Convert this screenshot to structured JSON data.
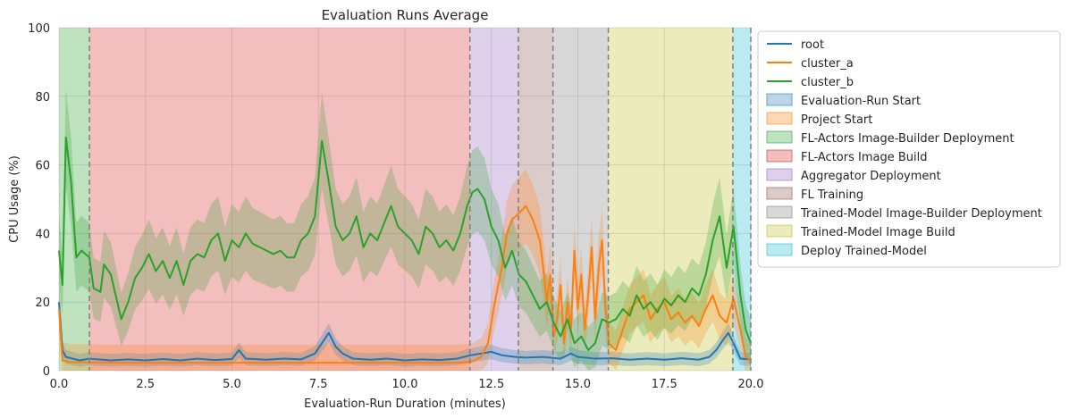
{
  "chart_data": {
    "type": "line",
    "title": "Evaluation Runs Average",
    "xlabel": "Evaluation-Run Duration (minutes)",
    "ylabel": "CPU Usage (%)",
    "xlim": [
      0,
      20
    ],
    "ylim": [
      0,
      100
    ],
    "xticks": [
      "0.0",
      "2.5",
      "5.0",
      "7.5",
      "10.0",
      "12.5",
      "15.0",
      "17.5",
      "20.0"
    ],
    "xtick_values": [
      0,
      2.5,
      5,
      7.5,
      10,
      12.5,
      15,
      17.5,
      20
    ],
    "yticks": [
      "0",
      "20",
      "40",
      "60",
      "80",
      "100"
    ],
    "ytick_values": [
      0,
      20,
      40,
      60,
      80,
      100
    ],
    "grid": true,
    "legend_position": "outside-right-top",
    "phases": [
      {
        "name": "FL-Actors Image-Builder Deployment",
        "start": 0.0,
        "end": 0.88,
        "color": "#2ca02c"
      },
      {
        "name": "FL-Actors Image Build",
        "start": 0.88,
        "end": 11.88,
        "color": "#d62728"
      },
      {
        "name": "Aggregator Deployment",
        "start": 11.88,
        "end": 13.28,
        "color": "#9467bd"
      },
      {
        "name": "FL Training",
        "start": 13.28,
        "end": 14.28,
        "color": "#8c564b"
      },
      {
        "name": "Trained-Model Image-Builder Deployment",
        "start": 14.28,
        "end": 15.88,
        "color": "#7f7f7f"
      },
      {
        "name": "Trained-Model Image Build",
        "start": 15.88,
        "end": 19.48,
        "color": "#bcbd22"
      },
      {
        "name": "Deploy Trained-Model",
        "start": 19.48,
        "end": 20.0,
        "color": "#17becf"
      }
    ],
    "phase_boundaries": [
      0.88,
      11.88,
      13.28,
      14.28,
      15.88,
      19.48,
      20.0
    ],
    "series": [
      {
        "name": "root",
        "color": "#1f77b4",
        "points": [
          [
            0,
            20
          ],
          [
            0.1,
            6
          ],
          [
            0.2,
            4
          ],
          [
            0.4,
            3.5
          ],
          [
            0.6,
            3
          ],
          [
            0.88,
            3.5
          ],
          [
            1.5,
            3
          ],
          [
            2.0,
            3.3
          ],
          [
            2.5,
            3
          ],
          [
            3.0,
            3.4
          ],
          [
            3.5,
            3
          ],
          [
            4.0,
            3.5
          ],
          [
            4.5,
            3.1
          ],
          [
            5.0,
            3.4
          ],
          [
            5.2,
            6
          ],
          [
            5.4,
            3.5
          ],
          [
            6.0,
            3.2
          ],
          [
            6.5,
            3.5
          ],
          [
            7.0,
            3.3
          ],
          [
            7.4,
            5
          ],
          [
            7.6,
            8
          ],
          [
            7.8,
            11
          ],
          [
            8.0,
            7
          ],
          [
            8.2,
            5
          ],
          [
            8.5,
            3.5
          ],
          [
            9.0,
            3.2
          ],
          [
            9.5,
            3.5
          ],
          [
            10.0,
            3
          ],
          [
            10.5,
            3.3
          ],
          [
            11.0,
            3.1
          ],
          [
            11.5,
            3.5
          ],
          [
            11.9,
            4.5
          ],
          [
            12.2,
            5
          ],
          [
            12.5,
            5.5
          ],
          [
            12.8,
            4.5
          ],
          [
            13.2,
            4
          ],
          [
            13.5,
            3.8
          ],
          [
            14.0,
            4
          ],
          [
            14.5,
            3.5
          ],
          [
            14.8,
            5
          ],
          [
            15.0,
            4
          ],
          [
            15.5,
            3.5
          ],
          [
            16.0,
            3.6
          ],
          [
            16.5,
            3.2
          ],
          [
            17.0,
            3.5
          ],
          [
            17.5,
            3.2
          ],
          [
            18.0,
            3.6
          ],
          [
            18.5,
            3.2
          ],
          [
            18.8,
            4
          ],
          [
            19.0,
            6
          ],
          [
            19.2,
            9
          ],
          [
            19.35,
            11
          ],
          [
            19.5,
            8
          ],
          [
            19.7,
            3.5
          ],
          [
            20,
            3.3
          ]
        ],
        "ci": 1.5
      },
      {
        "name": "cluster_a",
        "color": "#ff7f0e",
        "points": [
          [
            0,
            18
          ],
          [
            0.1,
            3
          ],
          [
            0.3,
            2.5
          ],
          [
            0.88,
            2.4
          ],
          [
            2.0,
            2.3
          ],
          [
            4.0,
            2.3
          ],
          [
            6.0,
            2.3
          ],
          [
            8.0,
            2.3
          ],
          [
            10.0,
            2.3
          ],
          [
            11.5,
            2.3
          ],
          [
            11.9,
            2.5
          ],
          [
            12.2,
            4
          ],
          [
            12.4,
            8
          ],
          [
            12.6,
            20
          ],
          [
            12.8,
            30
          ],
          [
            12.95,
            40
          ],
          [
            13.1,
            44
          ],
          [
            13.3,
            46
          ],
          [
            13.5,
            48
          ],
          [
            13.7,
            44
          ],
          [
            13.9,
            38
          ],
          [
            14.0,
            30
          ],
          [
            14.1,
            20
          ],
          [
            14.2,
            28
          ],
          [
            14.3,
            10
          ],
          [
            14.4,
            15
          ],
          [
            14.5,
            25
          ],
          [
            14.6,
            8
          ],
          [
            14.7,
            20
          ],
          [
            14.8,
            12
          ],
          [
            14.9,
            35
          ],
          [
            15.0,
            18
          ],
          [
            15.1,
            28
          ],
          [
            15.2,
            12
          ],
          [
            15.3,
            22
          ],
          [
            15.4,
            36
          ],
          [
            15.5,
            15
          ],
          [
            15.6,
            30
          ],
          [
            15.7,
            38
          ],
          [
            15.8,
            18
          ],
          [
            15.9,
            8
          ],
          [
            16.1,
            6
          ],
          [
            16.3,
            12
          ],
          [
            16.5,
            18
          ],
          [
            16.7,
            20
          ],
          [
            16.9,
            22
          ],
          [
            17.1,
            15
          ],
          [
            17.3,
            18
          ],
          [
            17.5,
            20
          ],
          [
            17.7,
            15
          ],
          [
            17.9,
            17
          ],
          [
            18.1,
            14
          ],
          [
            18.3,
            16
          ],
          [
            18.5,
            13
          ],
          [
            18.7,
            18
          ],
          [
            18.9,
            22
          ],
          [
            19.1,
            16
          ],
          [
            19.3,
            14
          ],
          [
            19.5,
            21
          ],
          [
            19.7,
            12
          ],
          [
            19.85,
            4
          ],
          [
            20,
            3
          ]
        ],
        "ci": 5
      },
      {
        "name": "cluster_b",
        "color": "#2ca02c",
        "points": [
          [
            0,
            35
          ],
          [
            0.1,
            25
          ],
          [
            0.2,
            68
          ],
          [
            0.35,
            55
          ],
          [
            0.5,
            33
          ],
          [
            0.65,
            35
          ],
          [
            0.88,
            33
          ],
          [
            1.0,
            24
          ],
          [
            1.2,
            23
          ],
          [
            1.3,
            31
          ],
          [
            1.5,
            28
          ],
          [
            1.8,
            15
          ],
          [
            2.0,
            20
          ],
          [
            2.2,
            27
          ],
          [
            2.4,
            30
          ],
          [
            2.6,
            34
          ],
          [
            2.8,
            29
          ],
          [
            3.0,
            32
          ],
          [
            3.2,
            27
          ],
          [
            3.4,
            32
          ],
          [
            3.6,
            25
          ],
          [
            3.8,
            32
          ],
          [
            4.0,
            34
          ],
          [
            4.2,
            33
          ],
          [
            4.4,
            38
          ],
          [
            4.6,
            40
          ],
          [
            4.8,
            32
          ],
          [
            5.0,
            38
          ],
          [
            5.2,
            36
          ],
          [
            5.4,
            40
          ],
          [
            5.6,
            37
          ],
          [
            5.8,
            36
          ],
          [
            6.0,
            35
          ],
          [
            6.2,
            34
          ],
          [
            6.4,
            35
          ],
          [
            6.6,
            33
          ],
          [
            6.8,
            33
          ],
          [
            7.0,
            38
          ],
          [
            7.2,
            40
          ],
          [
            7.4,
            45
          ],
          [
            7.6,
            67
          ],
          [
            7.8,
            55
          ],
          [
            8.0,
            42
          ],
          [
            8.2,
            38
          ],
          [
            8.4,
            40
          ],
          [
            8.6,
            45
          ],
          [
            8.8,
            36
          ],
          [
            9.0,
            40
          ],
          [
            9.2,
            38
          ],
          [
            9.4,
            43
          ],
          [
            9.6,
            48
          ],
          [
            9.8,
            42
          ],
          [
            10.0,
            40
          ],
          [
            10.2,
            38
          ],
          [
            10.4,
            34
          ],
          [
            10.6,
            42
          ],
          [
            10.8,
            40
          ],
          [
            11.0,
            36
          ],
          [
            11.2,
            38
          ],
          [
            11.4,
            35
          ],
          [
            11.6,
            40
          ],
          [
            11.8,
            48
          ],
          [
            11.95,
            52
          ],
          [
            12.1,
            53
          ],
          [
            12.3,
            50
          ],
          [
            12.5,
            42
          ],
          [
            12.7,
            38
          ],
          [
            12.9,
            30
          ],
          [
            13.1,
            35
          ],
          [
            13.3,
            28
          ],
          [
            13.5,
            26
          ],
          [
            13.7,
            22
          ],
          [
            13.9,
            18
          ],
          [
            14.1,
            20
          ],
          [
            14.3,
            14
          ],
          [
            14.5,
            10
          ],
          [
            14.7,
            15
          ],
          [
            14.9,
            8
          ],
          [
            15.1,
            10
          ],
          [
            15.3,
            6
          ],
          [
            15.5,
            8
          ],
          [
            15.7,
            15
          ],
          [
            15.9,
            14
          ],
          [
            16.1,
            15
          ],
          [
            16.3,
            18
          ],
          [
            16.5,
            16
          ],
          [
            16.7,
            22
          ],
          [
            16.9,
            18
          ],
          [
            17.1,
            20
          ],
          [
            17.3,
            17
          ],
          [
            17.5,
            21
          ],
          [
            17.7,
            19
          ],
          [
            17.9,
            22
          ],
          [
            18.1,
            20
          ],
          [
            18.3,
            24
          ],
          [
            18.5,
            22
          ],
          [
            18.7,
            28
          ],
          [
            18.9,
            38
          ],
          [
            19.1,
            45
          ],
          [
            19.3,
            30
          ],
          [
            19.5,
            42
          ],
          [
            19.7,
            22
          ],
          [
            19.85,
            12
          ],
          [
            20,
            8
          ]
        ],
        "ci": 6
      }
    ],
    "legend": {
      "lines": [
        "root",
        "cluster_a",
        "cluster_b"
      ],
      "patches": [
        {
          "label": "Evaluation-Run Start",
          "color": "#1f77b4"
        },
        {
          "label": "Project Start",
          "color": "#ff7f0e"
        },
        {
          "label": "FL-Actors Image-Builder Deployment",
          "color": "#2ca02c"
        },
        {
          "label": "FL-Actors Image Build",
          "color": "#d62728"
        },
        {
          "label": "Aggregator Deployment",
          "color": "#9467bd"
        },
        {
          "label": "FL Training",
          "color": "#8c564b"
        },
        {
          "label": "Trained-Model Image-Builder Deployment",
          "color": "#7f7f7f"
        },
        {
          "label": "Trained-Model Image Build",
          "color": "#bcbd22"
        },
        {
          "label": "Deploy Trained-Model",
          "color": "#17becf"
        }
      ]
    }
  }
}
